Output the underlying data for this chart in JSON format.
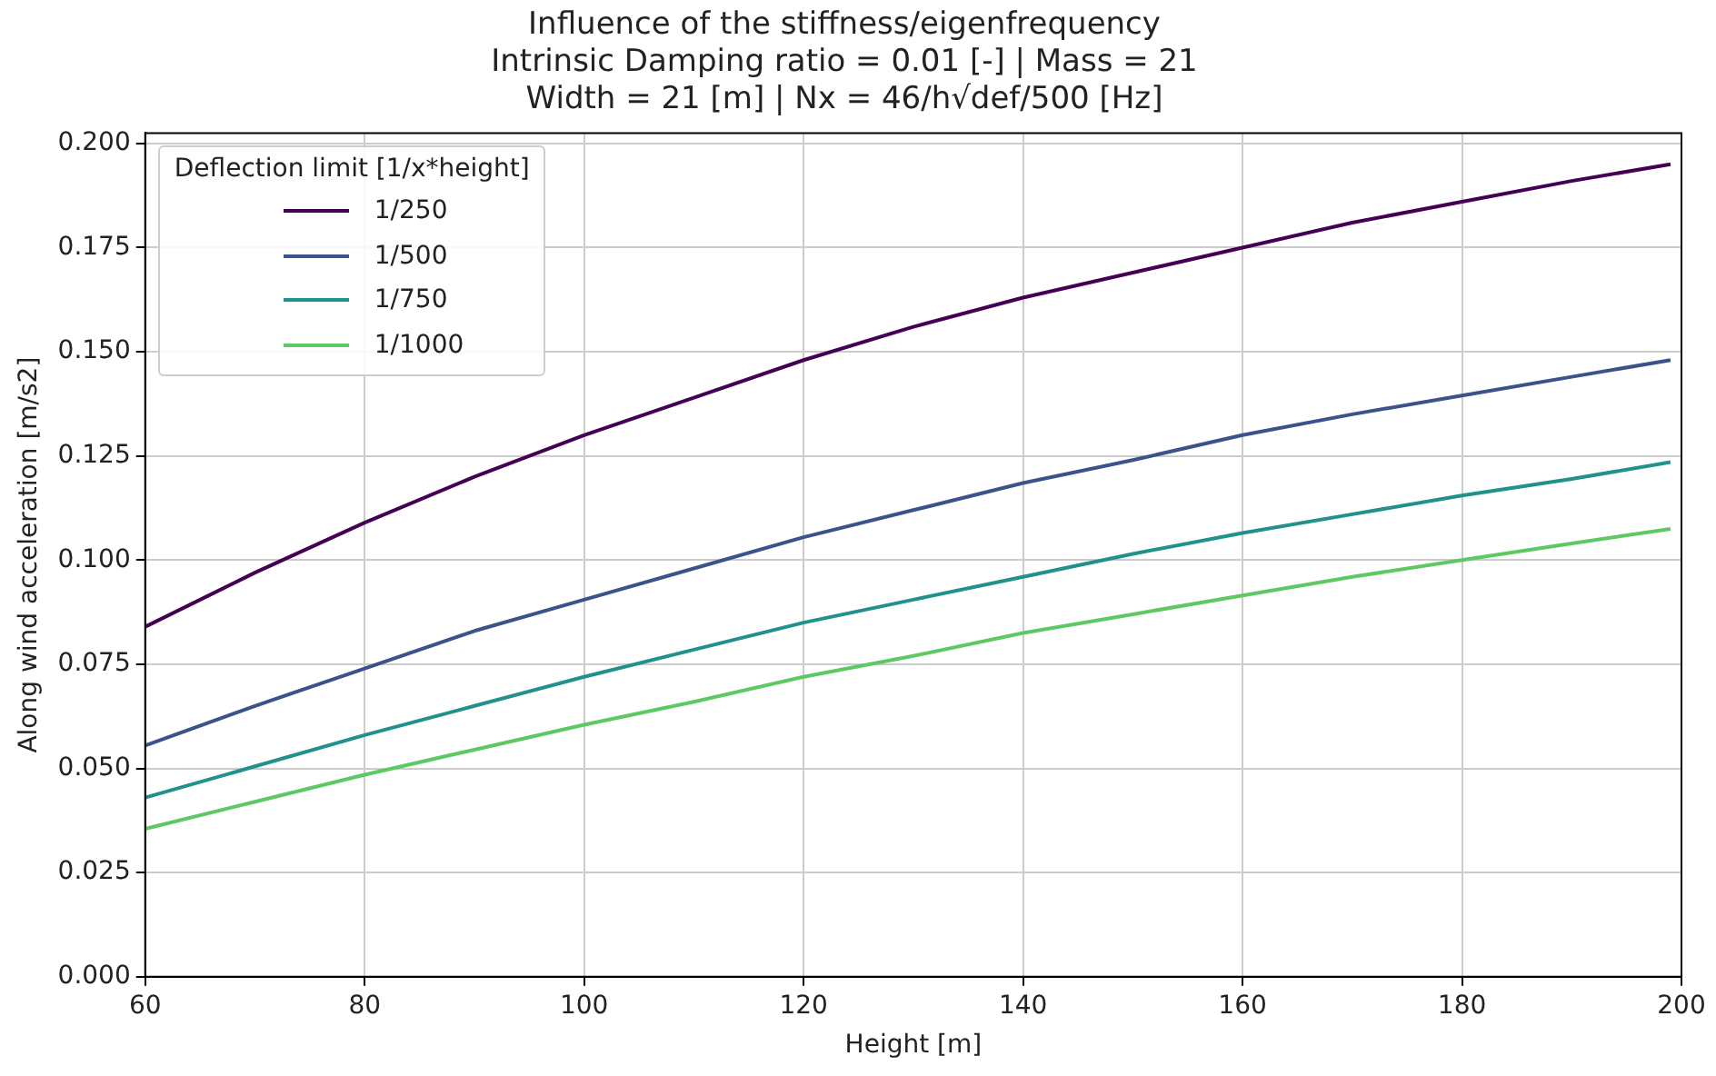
{
  "chart_data": {
    "type": "line",
    "title": [
      "Influence of the stiffness/eigenfrequency",
      "Intrinsic Damping ratio = 0.01 [-] | Mass = 21",
      "Width = 21 [m] | Nx = 46/h√def/500 [Hz]"
    ],
    "xlabel": "Height [m]",
    "ylabel": "Along wind acceleration [m/s2]",
    "legend_title": "Deflection limit [1/x*height]",
    "legend": "top left",
    "grid": true,
    "marker": "none",
    "line_style": "solid",
    "x": [
      60,
      70,
      80,
      90,
      100,
      110,
      120,
      130,
      140,
      150,
      160,
      170,
      180,
      190,
      199
    ],
    "xlim": [
      60,
      200
    ],
    "xticks": [
      60,
      80,
      100,
      120,
      140,
      160,
      180,
      200
    ],
    "ylim": [
      0,
      0.2025
    ],
    "yticks": [
      {
        "value": 0,
        "label": "0.000"
      },
      {
        "value": 0.025,
        "label": "0.025"
      },
      {
        "value": 0.05,
        "label": "0.050"
      },
      {
        "value": 0.075,
        "label": "0.075"
      },
      {
        "value": 0.1,
        "label": "0.100"
      },
      {
        "value": 0.125,
        "label": "0.125"
      },
      {
        "value": 0.15,
        "label": "0.150"
      },
      {
        "value": 0.175,
        "label": "0.175"
      },
      {
        "value": 0.2,
        "label": "0.200"
      }
    ],
    "series": [
      {
        "name": "1/250",
        "color": "#440154",
        "values": [
          0.084,
          0.097,
          0.109,
          0.12,
          0.13,
          0.139,
          0.148,
          0.156,
          0.163,
          0.169,
          0.175,
          0.181,
          0.186,
          0.191,
          0.195
        ]
      },
      {
        "name": "1/500",
        "color": "#3b528b",
        "values": [
          0.0555,
          0.065,
          0.074,
          0.083,
          0.0905,
          0.098,
          0.1055,
          0.112,
          0.1185,
          0.124,
          0.13,
          0.135,
          0.1395,
          0.144,
          0.148
        ]
      },
      {
        "name": "1/750",
        "color": "#21918c",
        "values": [
          0.043,
          0.0505,
          0.058,
          0.065,
          0.072,
          0.0785,
          0.085,
          0.0905,
          0.096,
          0.1015,
          0.1065,
          0.111,
          0.1155,
          0.1195,
          0.1235
        ]
      },
      {
        "name": "1/1000",
        "color": "#5ec962",
        "values": [
          0.0355,
          0.042,
          0.0485,
          0.0545,
          0.0605,
          0.066,
          0.072,
          0.077,
          0.0825,
          0.087,
          0.0915,
          0.096,
          0.1,
          0.104,
          0.1075
        ]
      }
    ]
  }
}
